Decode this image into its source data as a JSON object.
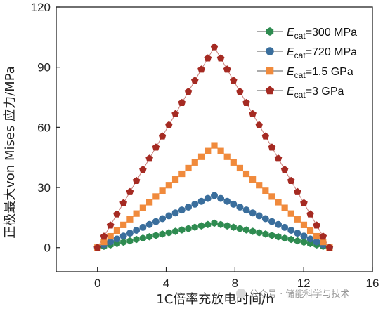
{
  "chart_data": {
    "type": "scatter",
    "xlabel": "1C倍率充放电时间/h",
    "ylabel": "正极最大von Mises 应力/MPa",
    "xlim": [
      -2.4,
      16
    ],
    "ylim": [
      -12,
      120
    ],
    "xticks": [
      0,
      4,
      8,
      12,
      16
    ],
    "yticks": [
      0,
      30,
      60,
      90,
      120
    ],
    "xtick_labels": [
      "0",
      "4",
      "8",
      "12",
      "16"
    ],
    "ytick_labels": [
      "0",
      "30",
      "60",
      "90",
      "120"
    ],
    "legend_position": "top-right",
    "legend_prefix": "E",
    "legend_sub": "cat",
    "series": [
      {
        "name": "=300 MPa",
        "color": "#2e8b50",
        "marker": "hexagon",
        "peak": 12.2
      },
      {
        "name": "=720 MPa",
        "color": "#3a6e9c",
        "marker": "circle",
        "peak": 26.0
      },
      {
        "name": "=1.5 GPa",
        "color": "#f08a3c",
        "marker": "square",
        "peak": 51.0
      },
      {
        "name": "=3 GPa",
        "color": "#a52a22",
        "marker": "pentagon",
        "peak": 100.0
      }
    ],
    "x_start": 0,
    "x_peak": 6.8,
    "x_end": 13.5,
    "points_per_side": 18
  },
  "watermark": {
    "text": "公众号 · 储能科学与技术"
  }
}
